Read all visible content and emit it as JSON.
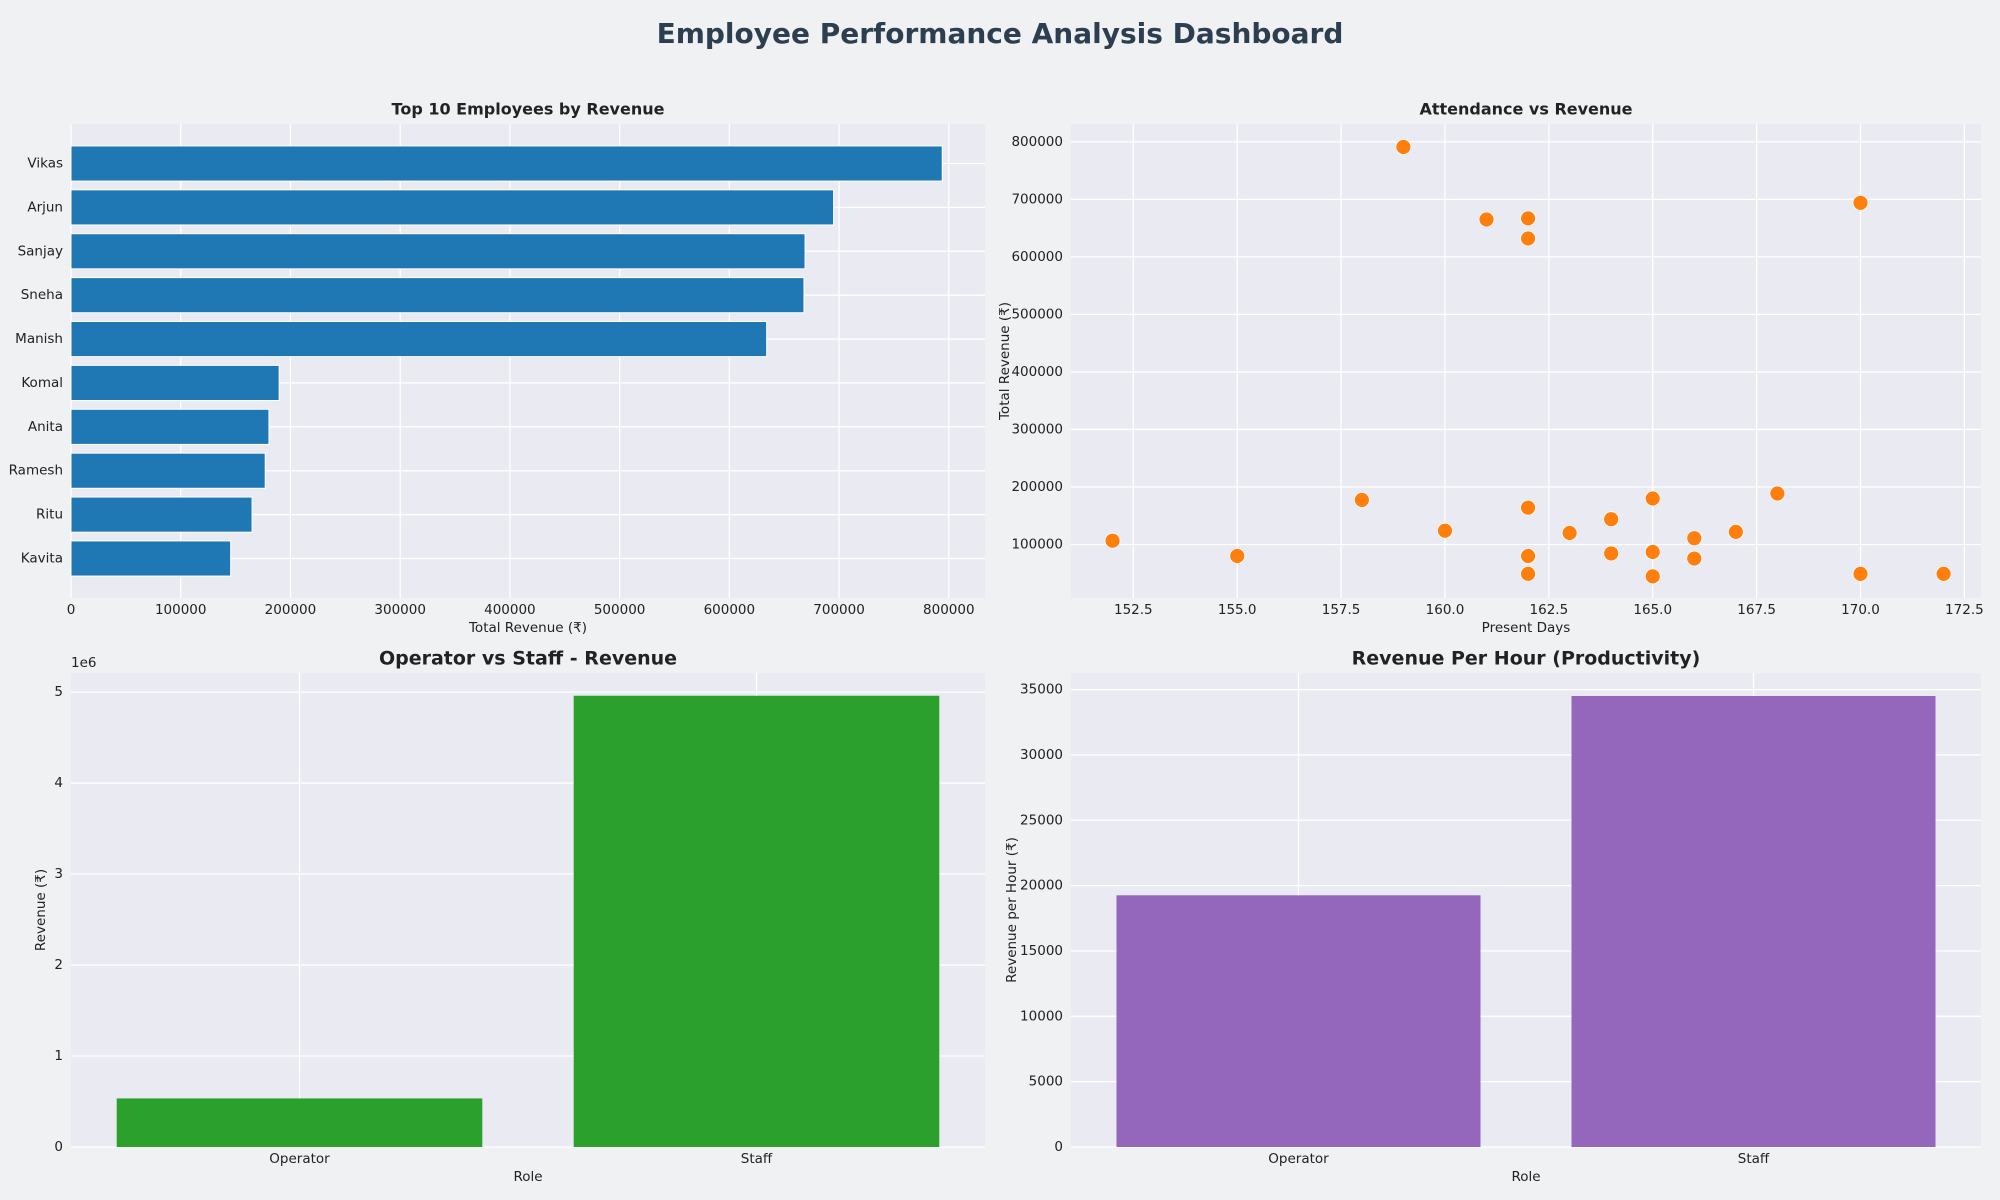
{
  "title": "Employee Performance Analysis Dashboard",
  "chart_data": [
    {
      "type": "barh",
      "title": "Top 10 Employees by Revenue",
      "xlabel": "Total Revenue (₹)",
      "categories": [
        "Vikas",
        "Arjun",
        "Sanjay",
        "Sneha",
        "Manish",
        "Komal",
        "Anita",
        "Ramesh",
        "Ritu",
        "Kavita"
      ],
      "values": [
        794000,
        695000,
        669000,
        668000,
        634000,
        189700,
        180400,
        177000,
        165000,
        145500
      ],
      "color": "#1f77b4",
      "xlim": [
        0,
        833000
      ],
      "xticks": [
        0,
        100000,
        200000,
        300000,
        400000,
        500000,
        600000,
        700000,
        800000
      ],
      "grid": true
    },
    {
      "type": "scatter",
      "title": "Attendance vs Revenue",
      "xlabel": "Present Days",
      "ylabel": "Total Revenue (₹)",
      "x": [
        152,
        155,
        158,
        159,
        160,
        161,
        162,
        162,
        162,
        162,
        162,
        163,
        164,
        164,
        165,
        165,
        165,
        166,
        166,
        167,
        168,
        170,
        170,
        172
      ],
      "values": [
        106600,
        80000,
        177500,
        791000,
        124000,
        665000,
        667000,
        632000,
        164000,
        80000,
        49000,
        120000,
        144000,
        84500,
        180000,
        87000,
        44600,
        111000,
        75600,
        122000,
        188600,
        694000,
        49000,
        49000
      ],
      "color": "#ff7f0e",
      "xlim": [
        151.0,
        172.9
      ],
      "ylim": [
        7000,
        831000
      ],
      "xticks": [
        152.5,
        {
          "value": 155,
          "label": "155.0"
        },
        157.5,
        {
          "value": 160,
          "label": "160.0"
        },
        162.5,
        {
          "value": 165,
          "label": "165.0"
        },
        167.5,
        {
          "value": 170,
          "label": "170.0"
        },
        172.5
      ],
      "yticks": [
        100000,
        200000,
        300000,
        400000,
        500000,
        600000,
        700000,
        800000
      ],
      "grid": true
    },
    {
      "type": "bar",
      "title": "Operator vs Staff - Revenue",
      "xlabel": "Role",
      "ylabel": "Revenue (₹)",
      "y_offset_label": "1e6",
      "categories": [
        "Operator",
        "Staff"
      ],
      "values": [
        0.534,
        4.96
      ],
      "color": "#2ca02c",
      "ylim": [
        0,
        5.21
      ],
      "yticks": [
        0,
        1,
        2,
        3,
        4,
        5
      ],
      "grid": true
    },
    {
      "type": "bar",
      "title": "Revenue Per Hour (Productivity)",
      "xlabel": "Role",
      "ylabel": "Revenue per Hour (₹)",
      "categories": [
        "Operator",
        "Staff"
      ],
      "values": [
        19260,
        34510
      ],
      "color": "#9467bd",
      "ylim": [
        0,
        36270
      ],
      "yticks": [
        0,
        5000,
        10000,
        15000,
        20000,
        25000,
        30000,
        35000
      ],
      "grid": true
    }
  ]
}
